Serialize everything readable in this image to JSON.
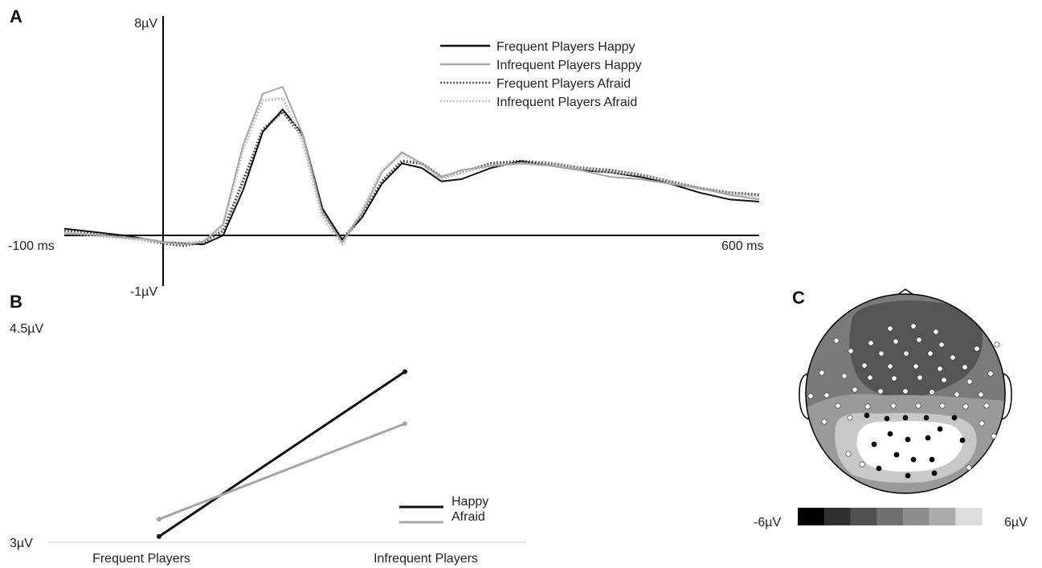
{
  "panels": {
    "a": "A",
    "b": "B",
    "c": "C"
  },
  "chart_data": [
    {
      "type": "line",
      "panel": "A",
      "x_unit": "ms",
      "xlim": [
        -100,
        600
      ],
      "ylim": [
        -1,
        8
      ],
      "x_tick_labels": {
        "min": "-100 ms",
        "max": "600 ms"
      },
      "y_tick_labels": {
        "min": "-1µV",
        "max": "8µV"
      },
      "x": [
        -100,
        -80,
        -60,
        -40,
        -20,
        0,
        20,
        40,
        60,
        80,
        100,
        120,
        140,
        160,
        180,
        200,
        220,
        240,
        260,
        280,
        300,
        330,
        360,
        390,
        420,
        450,
        480,
        510,
        540,
        570,
        600
      ],
      "series": [
        {
          "name": "Frequent Players Happy",
          "color": "#111111",
          "dash": "solid",
          "values": [
            0.3,
            0.2,
            0.1,
            0.0,
            -0.15,
            -0.3,
            -0.35,
            -0.4,
            0.0,
            2.0,
            4.6,
            5.6,
            4.5,
            1.2,
            -0.2,
            0.8,
            2.3,
            3.2,
            3.0,
            2.4,
            2.5,
            3.0,
            3.3,
            3.1,
            2.9,
            2.8,
            2.6,
            2.3,
            1.9,
            1.6,
            1.5
          ]
        },
        {
          "name": "Infrequent Players Happy",
          "color": "#a6a6a6",
          "dash": "solid",
          "values": [
            0.1,
            0.05,
            0.0,
            -0.1,
            -0.15,
            -0.3,
            -0.4,
            -0.3,
            0.5,
            4.0,
            6.3,
            6.6,
            4.5,
            1.0,
            -0.3,
            1.0,
            2.8,
            3.7,
            3.2,
            2.6,
            2.9,
            3.1,
            3.2,
            3.1,
            2.9,
            2.6,
            2.5,
            2.3,
            2.1,
            1.8,
            1.6
          ]
        },
        {
          "name": "Frequent Players Afraid",
          "color": "#555555",
          "dash": "dotted",
          "values": [
            0.2,
            0.1,
            0.0,
            -0.1,
            -0.2,
            -0.35,
            -0.45,
            -0.3,
            0.2,
            2.4,
            4.7,
            5.5,
            4.4,
            1.1,
            -0.2,
            0.9,
            2.4,
            3.3,
            3.2,
            2.6,
            2.8,
            3.2,
            3.3,
            3.2,
            3.0,
            2.9,
            2.7,
            2.4,
            2.1,
            1.9,
            1.8
          ]
        },
        {
          "name": "Infrequent Players Afraid",
          "color": "#c4c4c4",
          "dash": "dotted",
          "values": [
            0.1,
            0.05,
            -0.05,
            -0.1,
            -0.2,
            -0.3,
            -0.35,
            -0.25,
            0.4,
            3.8,
            6.0,
            6.1,
            4.2,
            0.8,
            -0.4,
            1.1,
            2.9,
            3.6,
            3.2,
            2.5,
            2.8,
            3.1,
            3.2,
            3.2,
            3.0,
            2.8,
            2.7,
            2.4,
            2.1,
            1.9,
            1.7
          ]
        }
      ]
    },
    {
      "type": "line",
      "panel": "B",
      "categories": [
        "Frequent Players",
        "Infrequent Players"
      ],
      "ylim": [
        3,
        4.5
      ],
      "y_tick_labels": [
        "3µV",
        "4.5µV"
      ],
      "series": [
        {
          "name": "Happy",
          "color": "#111111",
          "values": [
            3.04,
            4.18
          ]
        },
        {
          "name": "Afraid",
          "color": "#a6a6a6",
          "values": [
            3.16,
            3.82
          ]
        }
      ]
    },
    {
      "type": "heatmap",
      "panel": "C",
      "colorbar": {
        "min_label": "-6µV",
        "max_label": "6µV",
        "colors": [
          "#000000",
          "#303030",
          "#505050",
          "#707070",
          "#8e8e8e",
          "#ababab",
          "#dcdcdc"
        ]
      },
      "regions": [
        {
          "level": "negative",
          "color": "#555555",
          "location": "frontal"
        },
        {
          "level": "mid",
          "color": "#7a7a7a",
          "location": "central"
        },
        {
          "level": "positive-low",
          "color": "#9a9a9a",
          "location": "parietal"
        },
        {
          "level": "positive-mid",
          "color": "#c8c8c8",
          "location": "parieto-occipital"
        },
        {
          "level": "positive-high",
          "color": "#ffffff",
          "location": "parieto-occipital center"
        }
      ],
      "highlighted_electrodes": "parieto-occipital cluster (black)"
    }
  ]
}
